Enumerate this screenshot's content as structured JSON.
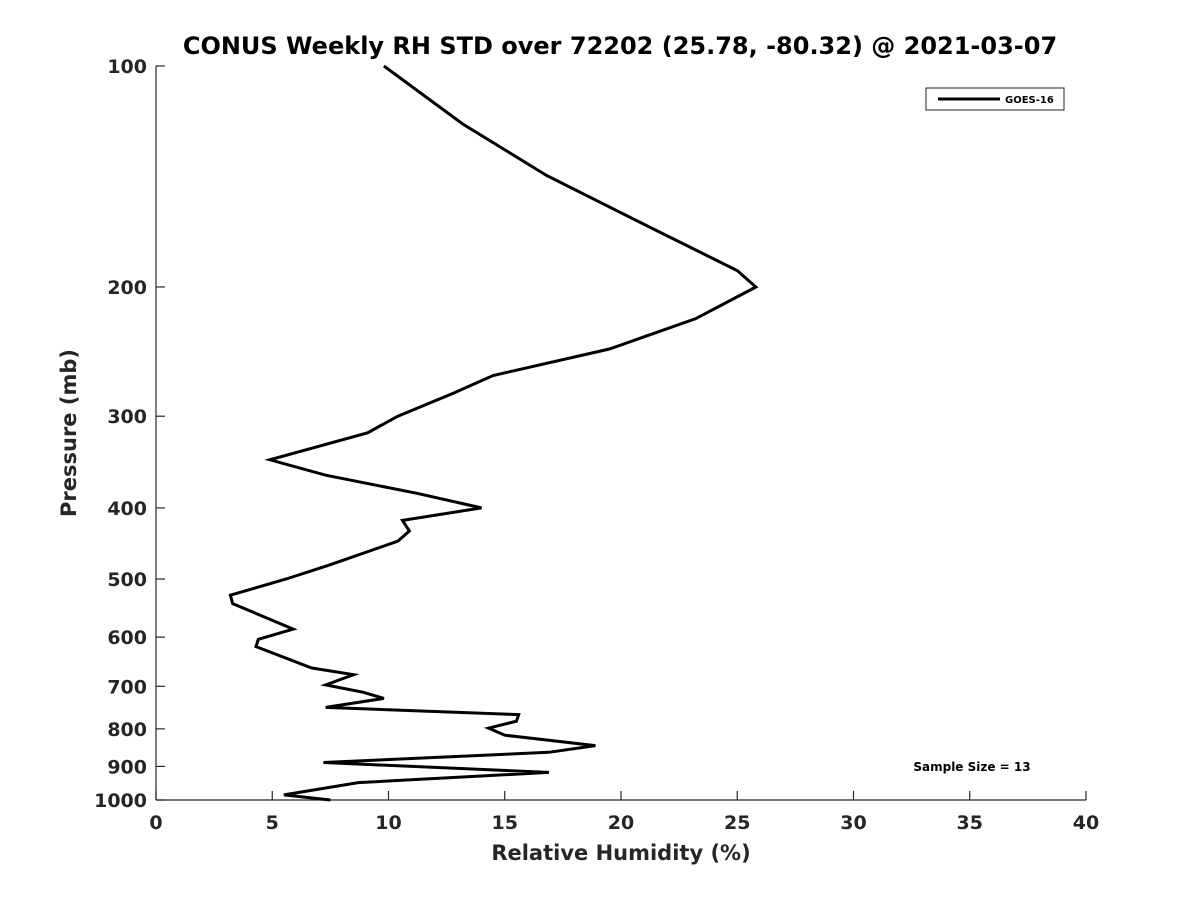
{
  "chart_data": {
    "type": "line",
    "title": "CONUS Weekly RH STD over 72202 (25.78, -80.32) @ 2021-03-07",
    "xlabel": "Relative Humidity (%)",
    "ylabel": "Pressure (mb)",
    "xlim": [
      0,
      40
    ],
    "ylim": [
      100,
      1000
    ],
    "y_scale": "log",
    "y_reversed": true,
    "x_ticks": [
      0,
      5,
      10,
      15,
      20,
      25,
      30,
      35,
      40
    ],
    "y_ticks": [
      100,
      200,
      300,
      400,
      500,
      600,
      700,
      800,
      900,
      1000
    ],
    "legend": {
      "placement": "top-right",
      "entries": [
        "GOES-16"
      ]
    },
    "annotation": "Sample Size = 13",
    "series_color": "#000000",
    "series": [
      {
        "name": "GOES-16",
        "points": [
          [
            9.8,
            100
          ],
          [
            13.2,
            120
          ],
          [
            16.8,
            141
          ],
          [
            21.6,
            168
          ],
          [
            25.0,
            190
          ],
          [
            25.8,
            200
          ],
          [
            23.2,
            221
          ],
          [
            19.5,
            243
          ],
          [
            14.5,
            264
          ],
          [
            12.8,
            279
          ],
          [
            10.4,
            300
          ],
          [
            9.1,
            316
          ],
          [
            4.9,
            344
          ],
          [
            7.3,
            361
          ],
          [
            11.2,
            382
          ],
          [
            14.0,
            400
          ],
          [
            10.6,
            416
          ],
          [
            10.9,
            430
          ],
          [
            10.4,
            444
          ],
          [
            7.4,
            479
          ],
          [
            5.6,
            500
          ],
          [
            3.2,
            526
          ],
          [
            3.3,
            540
          ],
          [
            5.9,
            585
          ],
          [
            4.4,
            604
          ],
          [
            4.3,
            618
          ],
          [
            6.7,
            661
          ],
          [
            8.5,
            675
          ],
          [
            7.3,
            697
          ],
          [
            8.9,
            713
          ],
          [
            9.8,
            727
          ],
          [
            7.3,
            748
          ],
          [
            15.6,
            765
          ],
          [
            15.5,
            781
          ],
          [
            14.3,
            798
          ],
          [
            15.0,
            816
          ],
          [
            18.9,
            843
          ],
          [
            16.9,
            861
          ],
          [
            7.2,
            889
          ],
          [
            16.9,
            917
          ],
          [
            8.7,
            947
          ],
          [
            5.5,
            984
          ],
          [
            7.5,
            1000
          ]
        ]
      }
    ]
  }
}
